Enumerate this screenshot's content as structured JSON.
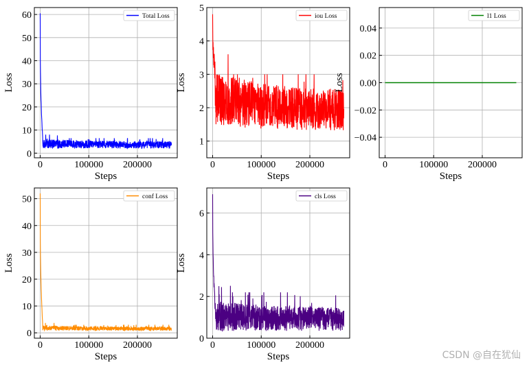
{
  "watermark": "CSDN @自在犹仙",
  "chart_data": [
    {
      "type": "line",
      "id": "total",
      "legend": "Total Loss",
      "color": "#0000ff",
      "xlabel": "Steps",
      "ylabel": "Loss",
      "xlim": [
        -12000,
        282000
      ],
      "ylim": [
        -2,
        63
      ],
      "xticks": [
        0,
        100000,
        200000
      ],
      "xtick_labels": [
        "0",
        "100000",
        "200000"
      ],
      "yticks": [
        0,
        10,
        20,
        30,
        40,
        50,
        60
      ],
      "ytick_labels": [
        "0",
        "10",
        "20",
        "30",
        "40",
        "50",
        "60"
      ],
      "x_max": 270000,
      "peak": 60.5,
      "floor_low": 1.5,
      "floor_high": 6.5,
      "settle": 3.5,
      "noise_level": 1.5,
      "legend_loc": "upper right",
      "grid": true
    },
    {
      "type": "line",
      "id": "iou",
      "legend": "iou Loss",
      "color": "#ff0000",
      "xlabel": "Steps",
      "ylabel": "Loss",
      "xlim": [
        -12000,
        282000
      ],
      "ylim": [
        0.5,
        5
      ],
      "xticks": [
        0,
        100000,
        200000
      ],
      "xtick_labels": [
        "0",
        "100000",
        "200000"
      ],
      "yticks": [
        1,
        2,
        3,
        4,
        5
      ],
      "ytick_labels": [
        "1",
        "2",
        "3",
        "4",
        "5"
      ],
      "x_max": 270000,
      "peak": 4.8,
      "floor_low": 0.8,
      "floor_high": 3.0,
      "settle": 1.9,
      "noise_level": 0.6,
      "legend_loc": "upper right",
      "grid": true
    },
    {
      "type": "line",
      "id": "l1",
      "legend": "l1 Loss",
      "color": "#008000",
      "xlabel": "Steps",
      "ylabel": "Loss",
      "xlim": [
        -12000,
        282000
      ],
      "ylim": [
        -0.055,
        0.055
      ],
      "xticks": [
        0,
        100000,
        200000
      ],
      "xtick_labels": [
        "0",
        "100000",
        "200000"
      ],
      "yticks": [
        -0.04,
        -0.02,
        0.0,
        0.02,
        0.04
      ],
      "ytick_labels": [
        "−0.04",
        "−0.02",
        "0.00",
        "0.02",
        "0.04"
      ],
      "x_max": 270000,
      "constant": 0.0,
      "legend_loc": "upper right",
      "grid": true
    },
    {
      "type": "line",
      "id": "conf",
      "legend": "conf Loss",
      "color": "#ff8c00",
      "xlabel": "Steps",
      "ylabel": "Loss",
      "xlim": [
        -12000,
        282000
      ],
      "ylim": [
        -2,
        54
      ],
      "xticks": [
        0,
        100000,
        200000
      ],
      "xtick_labels": [
        "0",
        "100000",
        "200000"
      ],
      "yticks": [
        0,
        10,
        20,
        30,
        40,
        50
      ],
      "ytick_labels": [
        "0",
        "10",
        "20",
        "30",
        "40",
        "50"
      ],
      "x_max": 270000,
      "peak": 52,
      "floor_low": 0.5,
      "floor_high": 3.0,
      "settle": 1.5,
      "noise_level": 0.7,
      "legend_loc": "upper right",
      "grid": true
    },
    {
      "type": "line",
      "id": "cls",
      "legend": "cls Loss",
      "color": "#4b0082",
      "xlabel": "Steps",
      "ylabel": "Loss",
      "xlim": [
        -12000,
        282000
      ],
      "ylim": [
        0,
        7.2
      ],
      "xticks": [
        0,
        100000,
        200000
      ],
      "xtick_labels": [
        "0",
        "100000",
        "200000"
      ],
      "yticks": [
        0,
        2,
        4,
        6
      ],
      "ytick_labels": [
        "0",
        "2",
        "4",
        "6"
      ],
      "x_max": 270000,
      "peak": 6.9,
      "floor_low": 0.3,
      "floor_high": 2.2,
      "settle": 0.9,
      "noise_level": 0.55,
      "legend_loc": "upper right",
      "grid": true
    }
  ]
}
